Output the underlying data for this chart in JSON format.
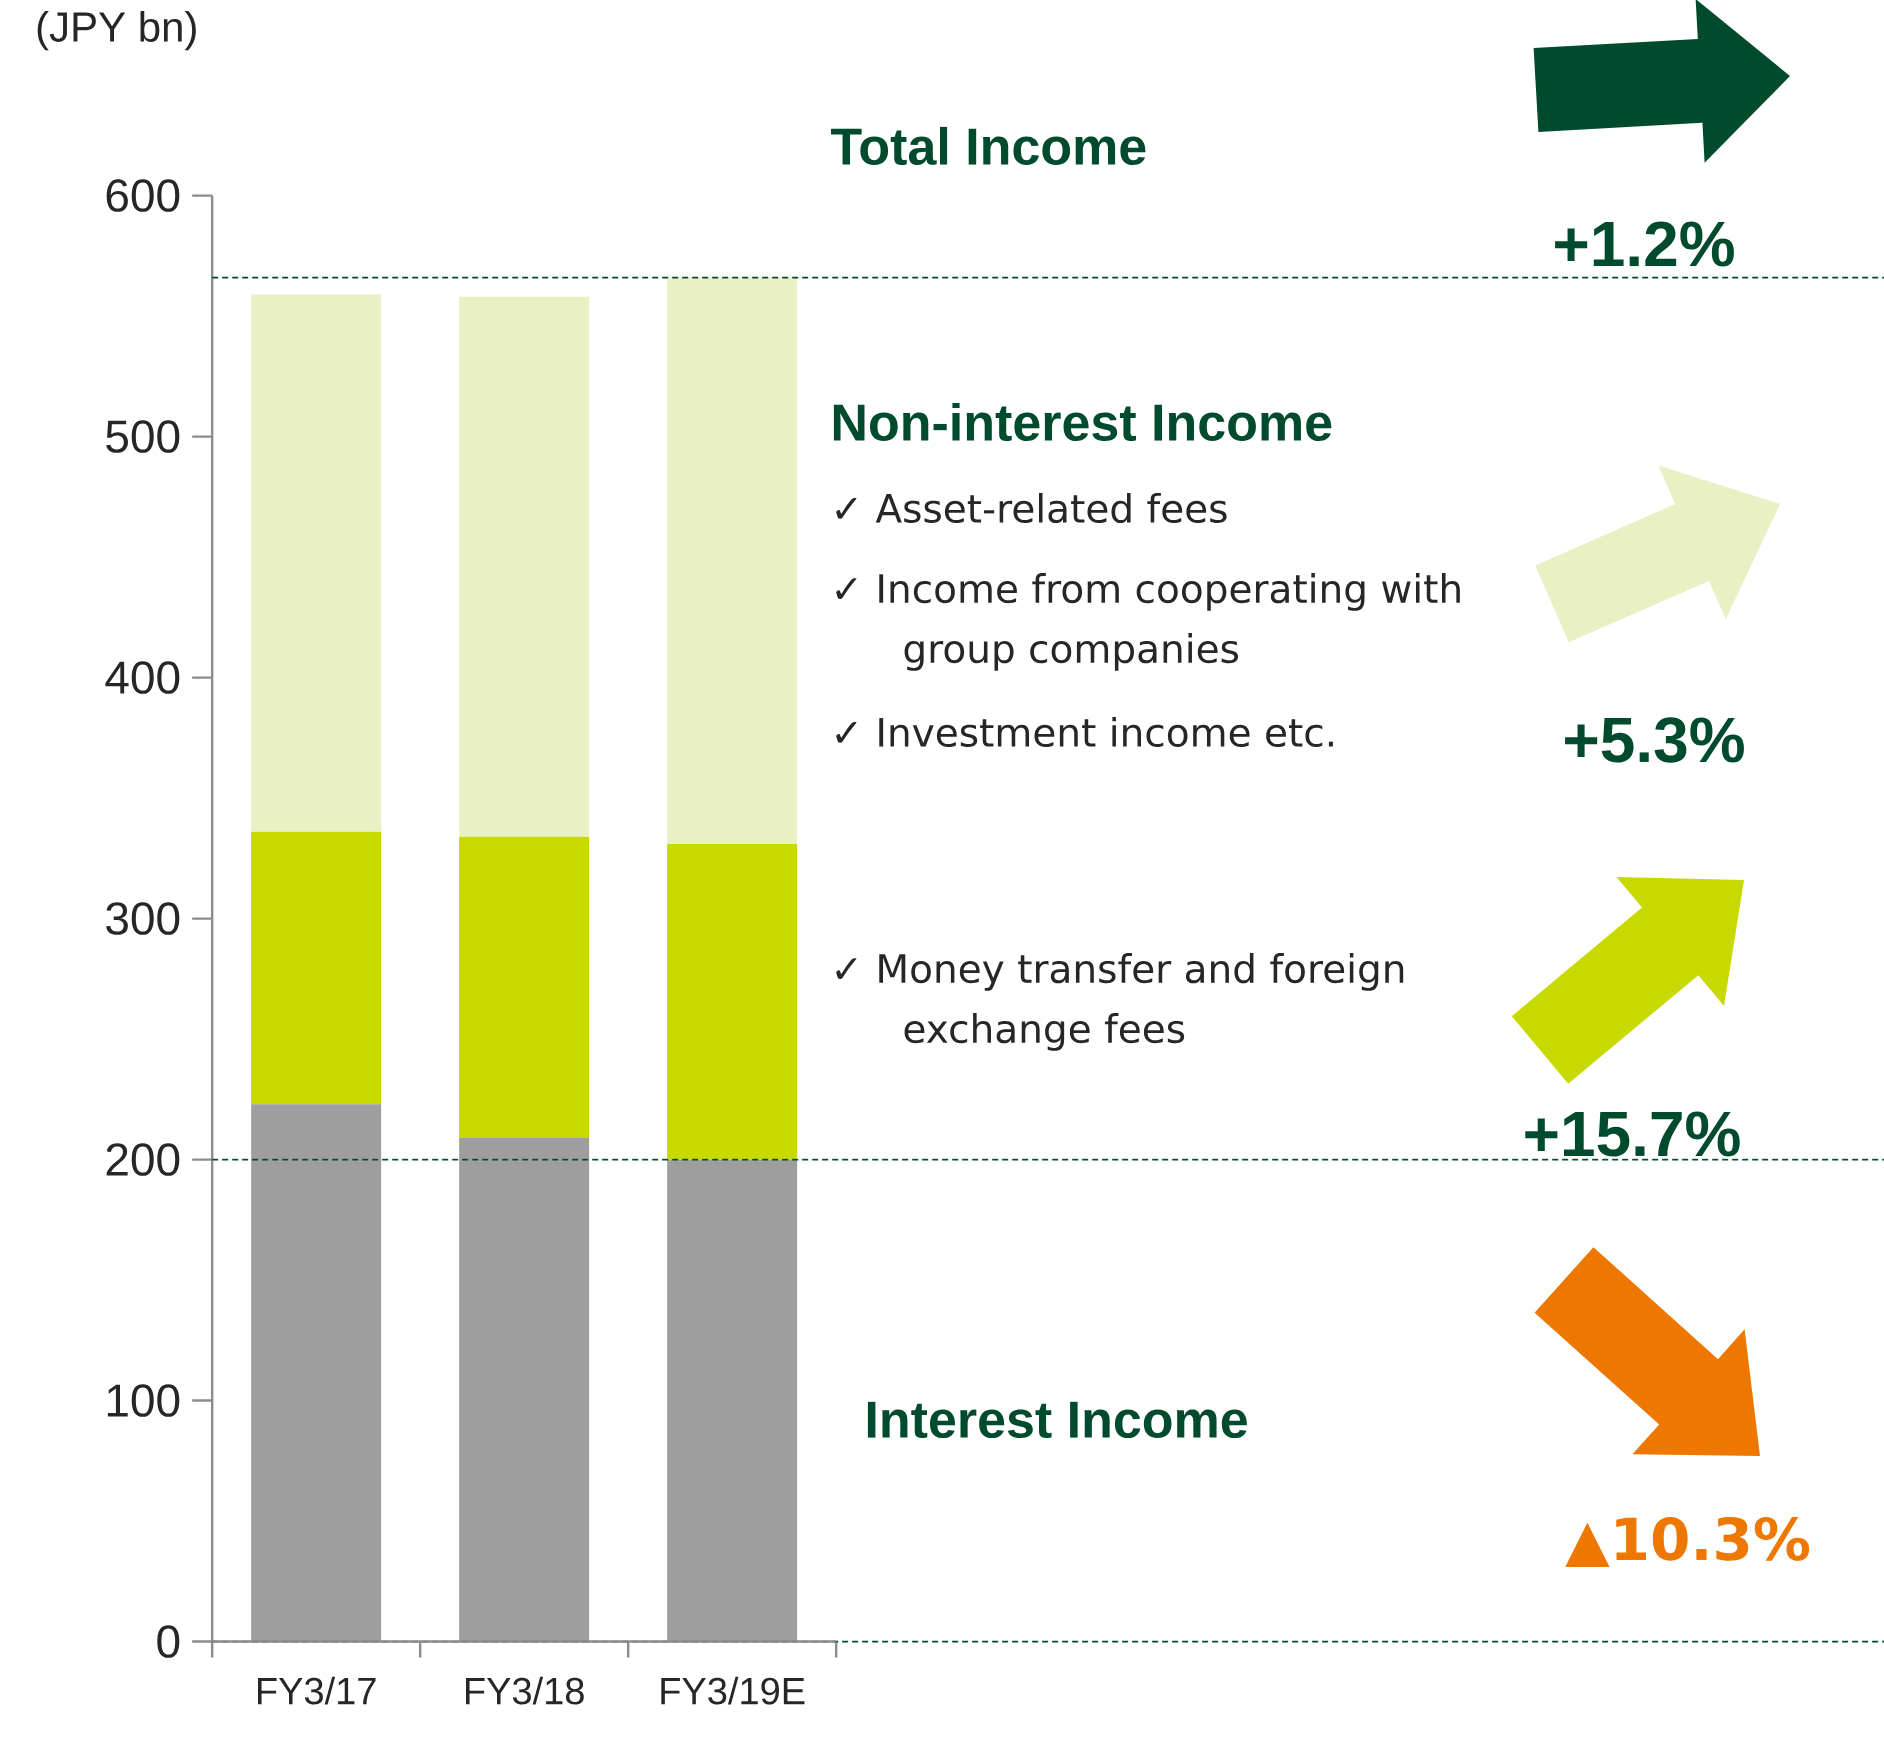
{
  "chart_data": {
    "type": "bar",
    "stacked": true,
    "ylabel": "(JPY bn)",
    "categories": [
      "FY3/17",
      "FY3/18",
      "FY3/19E"
    ],
    "series": [
      {
        "color": "#9e9e9e",
        "values": [
          223,
          209,
          200
        ]
      },
      {
        "color": "#c8d900",
        "values": [
          113,
          125,
          131
        ]
      },
      {
        "color": "#e8f0c4",
        "values": [
          223,
          224,
          235
        ]
      }
    ],
    "ylim": [
      0,
      600
    ],
    "yticks": [
      0,
      100,
      200,
      300,
      400,
      500,
      600
    ],
    "ref_lines": [
      {
        "axis": "y",
        "value": 566,
        "color": "#004b2e",
        "line_style": "dashed"
      },
      {
        "axis": "y",
        "value": 200,
        "color": "#004b2e",
        "line_style": "dashed"
      },
      {
        "axis": "y",
        "value": 0,
        "color": "#004b2e",
        "line_style": "dashed"
      }
    ],
    "annotations": [
      "Total Income",
      "+1.2%",
      "Non-interest Income",
      "✓ Asset-related fees",
      "✓ Income from cooperating with group companies",
      "✓ Investment income etc.",
      "+5.3%",
      "✓ Money transfer and foreign exchange fees",
      "+15.7%",
      "Interest Income",
      "▲10.3%"
    ]
  }
}
